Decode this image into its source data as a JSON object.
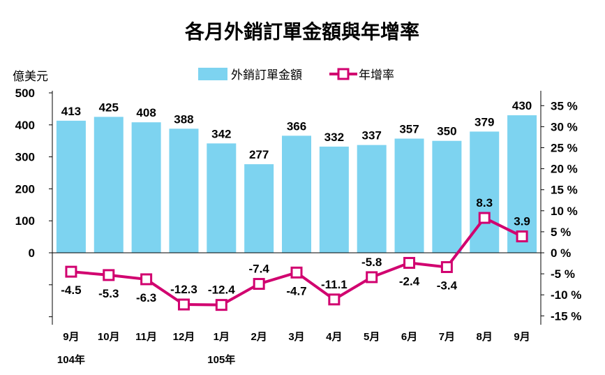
{
  "chart_data": {
    "type": "bar+line",
    "title": "各月外銷訂單金額與年增率",
    "left_axis_unit": "億美元",
    "categories": [
      "9月",
      "10月",
      "11月",
      "12月",
      "1月",
      "2月",
      "3月",
      "4月",
      "5月",
      "6月",
      "7月",
      "8月",
      "9月"
    ],
    "year_labels": [
      {
        "category_index": 0,
        "text": "104年"
      },
      {
        "category_index": 4,
        "text": "105年"
      }
    ],
    "series": [
      {
        "name": "外銷訂單金額",
        "type": "bar",
        "axis": "left",
        "color": "#7dd3f0",
        "values": [
          413,
          425,
          408,
          388,
          342,
          277,
          366,
          332,
          337,
          357,
          350,
          379,
          430
        ]
      },
      {
        "name": "年增率",
        "type": "line",
        "axis": "right",
        "color": "#d1006f",
        "values": [
          -4.5,
          -5.3,
          -6.3,
          -12.3,
          -12.4,
          -7.4,
          -4.7,
          -11.1,
          -5.8,
          -2.4,
          -3.4,
          8.3,
          3.9
        ]
      }
    ],
    "left_axis": {
      "ticks": [
        0,
        100,
        200,
        300,
        400,
        500
      ],
      "labels": [
        "0",
        "100",
        "200",
        "300",
        "400",
        "500"
      ]
    },
    "right_axis": {
      "ticks": [
        35,
        30,
        25,
        20,
        15,
        10,
        5,
        0,
        -5,
        -10,
        -15
      ],
      "labels": [
        "35 %",
        "30 %",
        "25 %",
        "20 %",
        "15 %",
        "10 %",
        "5 %",
        "0 %",
        "-5 %",
        "-10 %",
        "-15 %"
      ]
    },
    "legend_position": "top",
    "grid": false
  }
}
